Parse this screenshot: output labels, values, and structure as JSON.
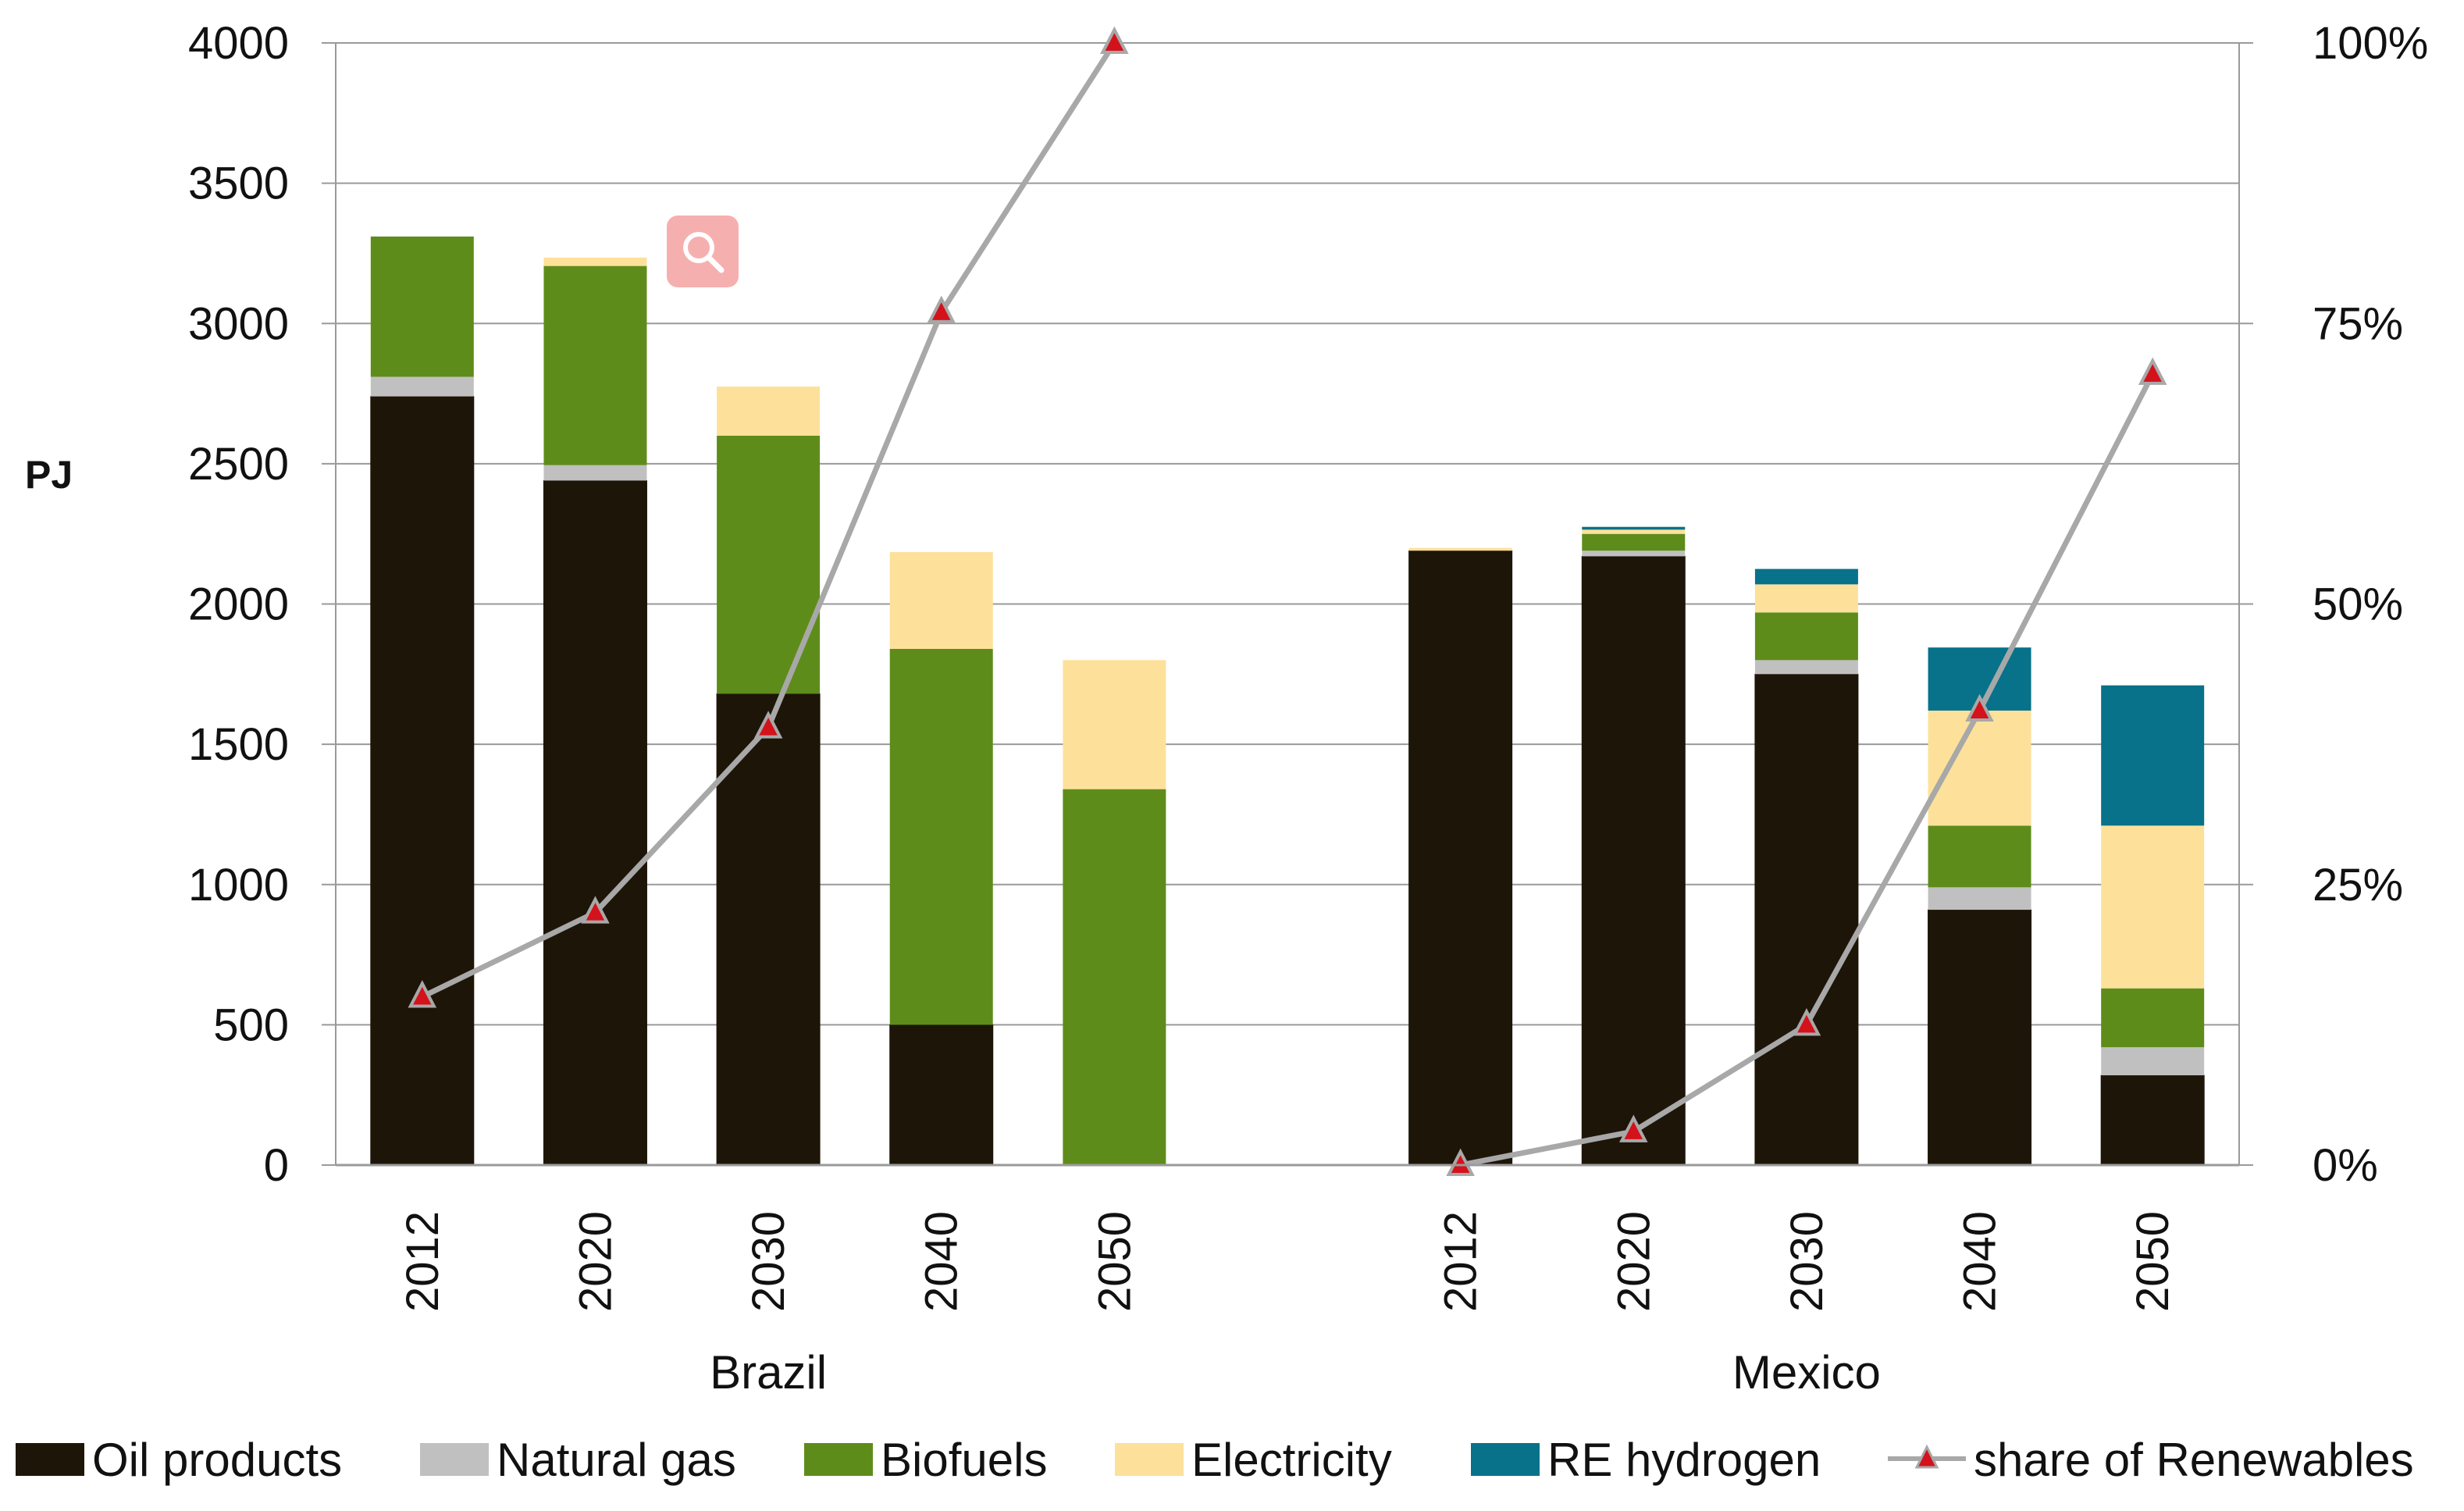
{
  "chart_data": {
    "type": "bar",
    "stacked": true,
    "ylabel": "PJ",
    "ylim": [
      0,
      4000
    ],
    "yticks": [
      "0",
      "500",
      "1000",
      "1500",
      "2000",
      "2500",
      "3000",
      "3500",
      "4000"
    ],
    "y2lim": [
      0,
      100
    ],
    "y2ticks": [
      "0%",
      "25%",
      "50%",
      "75%",
      "100%"
    ],
    "grid": true,
    "groups": [
      {
        "name": "Brazil",
        "categories": [
          "2012",
          "2020",
          "2030",
          "2040",
          "2050"
        ]
      },
      {
        "name": "Mexico",
        "categories": [
          "2012",
          "2020",
          "2030",
          "2040",
          "2050"
        ]
      }
    ],
    "series": [
      {
        "name": "Oil products",
        "color": "#1e1509",
        "values": [
          2740,
          2440,
          1680,
          500,
          0,
          2190,
          2170,
          1750,
          910,
          320
        ]
      },
      {
        "name": "Natural gas",
        "color": "#c0c0c0",
        "values": [
          70,
          55,
          0,
          0,
          0,
          0,
          20,
          50,
          80,
          100
        ]
      },
      {
        "name": "Biofuels",
        "color": "#5e8c1a",
        "values": [
          500,
          710,
          920,
          1340,
          1340,
          0,
          60,
          170,
          220,
          210
        ]
      },
      {
        "name": "Electricity",
        "color": "#fde19a",
        "values": [
          0,
          30,
          175,
          345,
          460,
          10,
          15,
          100,
          410,
          580
        ]
      },
      {
        "name": "RE hydrogen",
        "color": "#07728a",
        "values": [
          0,
          0,
          0,
          0,
          0,
          0,
          10,
          55,
          225,
          500
        ]
      }
    ],
    "line_series": {
      "name": "share of Renewables",
      "axis": "right",
      "color": "#a8a8a8",
      "marker_color": "#d4121b",
      "values": [
        15,
        22.5,
        39,
        76,
        100,
        0,
        3,
        12.5,
        40.5,
        70.5
      ]
    },
    "legend": "bottom"
  },
  "ui": {
    "zoom_icon": "magnifier-icon"
  }
}
